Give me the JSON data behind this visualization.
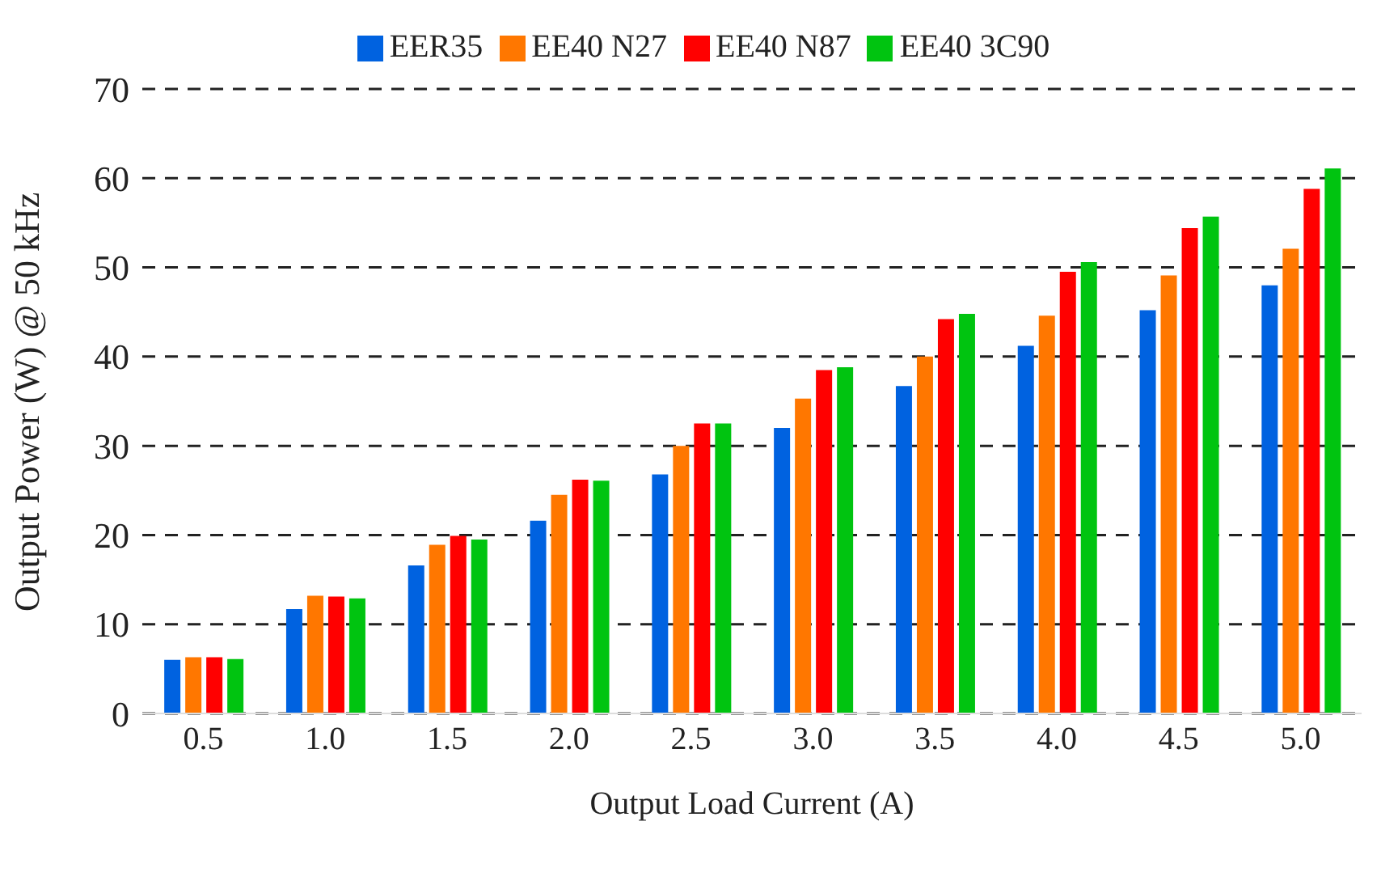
{
  "chart_data": {
    "type": "bar",
    "xlabel": "Output Load Current (A)",
    "ylabel": "Output Power (W) @ 50 kHz",
    "categories": [
      "0.5",
      "1.0",
      "1.5",
      "2.0",
      "2.5",
      "3.0",
      "3.5",
      "4.0",
      "4.5",
      "5.0"
    ],
    "series": [
      {
        "name": "EER35",
        "color": "#0062e0",
        "values": [
          6.0,
          11.7,
          16.6,
          21.6,
          26.8,
          32.0,
          36.7,
          41.2,
          45.2,
          48.0
        ]
      },
      {
        "name": "EE40 N27",
        "color": "#ff7700",
        "values": [
          6.3,
          13.2,
          18.9,
          24.5,
          30.0,
          35.3,
          40.0,
          44.6,
          49.1,
          52.1
        ]
      },
      {
        "name": "EE40 N87",
        "color": "#ff0000",
        "values": [
          6.3,
          13.1,
          19.9,
          26.2,
          32.5,
          38.5,
          44.2,
          49.5,
          54.4,
          58.8
        ]
      },
      {
        "name": "EE40 3C90",
        "color": "#00c410",
        "values": [
          6.1,
          12.9,
          19.5,
          26.1,
          32.5,
          38.8,
          44.8,
          50.6,
          55.7,
          61.1
        ]
      }
    ],
    "ylim": [
      0,
      70
    ],
    "yticks": [
      0,
      10,
      20,
      30,
      40,
      50,
      60,
      70
    ],
    "grid": "y",
    "legend": "top"
  }
}
